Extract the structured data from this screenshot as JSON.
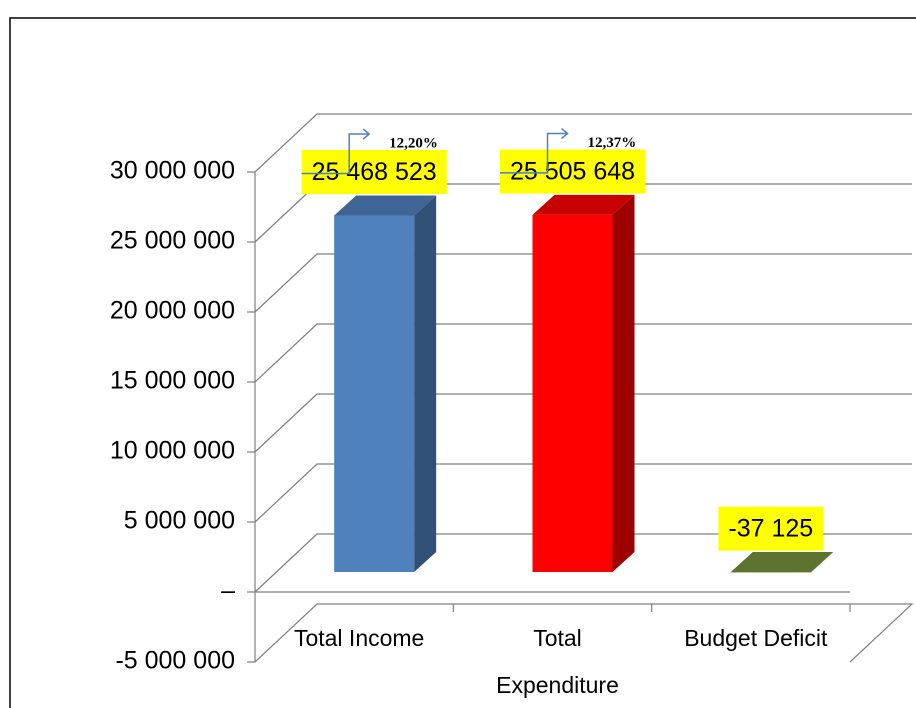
{
  "chart_data": {
    "type": "bar3d",
    "categories": [
      "Total Income",
      "Total Expenditure",
      "Budget Deficit"
    ],
    "values": [
      25468523,
      25505648,
      -37125
    ],
    "value_labels": [
      "25 468 523",
      "25 505 648",
      "-37 125"
    ],
    "annotations": [
      "12,20%",
      "12,37%"
    ],
    "colors": [
      "#4f81bd",
      "#ff0000",
      "#77933c"
    ],
    "ylim": [
      -5000000,
      30000000
    ],
    "yticks": [
      {
        "value": -5000000,
        "label": "-5 000 000"
      },
      {
        "value": 0,
        "label": "–"
      },
      {
        "value": 5000000,
        "label": "5 000 000"
      },
      {
        "value": 10000000,
        "label": "10 000 000"
      },
      {
        "value": 15000000,
        "label": "15 000 000"
      },
      {
        "value": 20000000,
        "label": "20 000 000"
      },
      {
        "value": 25000000,
        "label": "25 000 000"
      },
      {
        "value": 30000000,
        "label": "30 000 000"
      }
    ],
    "grid": true
  }
}
